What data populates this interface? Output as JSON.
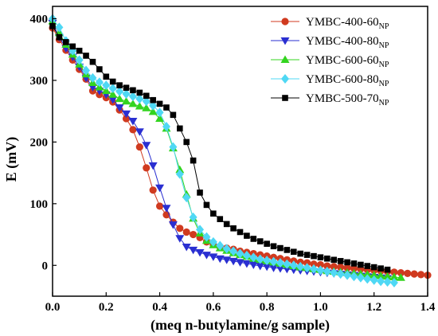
{
  "chart_data": {
    "type": "line",
    "title": "",
    "xlabel": "(meq n-butylamine/g sample)",
    "ylabel": "E (mV)",
    "xlim": [
      0.0,
      1.4
    ],
    "ylim": [
      -50,
      420
    ],
    "xticks": [
      "0.0",
      "0.2",
      "0.4",
      "0.6",
      "0.8",
      "1.0",
      "1.2",
      "1.4"
    ],
    "yticks": [
      "0",
      "100",
      "200",
      "300",
      "400"
    ],
    "grid": false,
    "legend_position": "top-right",
    "series": [
      {
        "name": "YMBC-400-60",
        "name_subscript": "NP",
        "color": "#d03a1f",
        "marker": "circle",
        "x": [
          0.0,
          0.025,
          0.05,
          0.075,
          0.1,
          0.125,
          0.15,
          0.175,
          0.2,
          0.225,
          0.25,
          0.275,
          0.3,
          0.325,
          0.35,
          0.375,
          0.4,
          0.425,
          0.45,
          0.475,
          0.5,
          0.525,
          0.55,
          0.575,
          0.6,
          0.625,
          0.65,
          0.675,
          0.7,
          0.725,
          0.75,
          0.775,
          0.8,
          0.825,
          0.85,
          0.875,
          0.9,
          0.925,
          0.95,
          0.975,
          1.0,
          1.025,
          1.05,
          1.075,
          1.1,
          1.125,
          1.15,
          1.175,
          1.2,
          1.225,
          1.25,
          1.275,
          1.3,
          1.325,
          1.35,
          1.375,
          1.4
        ],
        "y": [
          385,
          366,
          349,
          333,
          318,
          302,
          283,
          277,
          272,
          265,
          252,
          238,
          220,
          192,
          158,
          122,
          96,
          82,
          70,
          60,
          54,
          50,
          45,
          38,
          34,
          30,
          28,
          26,
          23,
          21,
          19,
          17,
          15,
          13,
          11,
          9,
          7,
          5,
          4,
          2,
          1,
          -1,
          -2,
          -3,
          -4,
          -5,
          -6,
          -7,
          -8,
          -9,
          -10,
          -11,
          -12,
          -13,
          -14,
          -15,
          -16
        ]
      },
      {
        "name": "YMBC-400-80",
        "name_subscript": "NP",
        "color": "#2a2fd1",
        "marker": "triangle-down",
        "x": [
          0.0,
          0.025,
          0.05,
          0.075,
          0.1,
          0.125,
          0.15,
          0.175,
          0.2,
          0.225,
          0.25,
          0.275,
          0.3,
          0.325,
          0.35,
          0.375,
          0.4,
          0.425,
          0.45,
          0.475,
          0.5,
          0.525,
          0.55,
          0.575,
          0.6,
          0.625,
          0.65,
          0.675,
          0.7,
          0.725,
          0.75,
          0.775,
          0.8,
          0.825,
          0.85,
          0.875,
          0.9,
          0.925,
          0.95,
          0.975,
          1.0,
          1.025,
          1.05,
          1.075,
          1.1,
          1.125,
          1.15,
          1.175,
          1.2,
          1.225,
          1.25
        ],
        "y": [
          393,
          370,
          352,
          338,
          322,
          304,
          289,
          283,
          277,
          269,
          256,
          246,
          234,
          217,
          195,
          162,
          126,
          93,
          66,
          44,
          30,
          25,
          21,
          17,
          14,
          11,
          9,
          7,
          5,
          3,
          1,
          -1,
          -2,
          -4,
          -5,
          -6,
          -7,
          -8,
          -9,
          -10,
          -11,
          -12,
          -13,
          -14,
          -15,
          -16,
          -17,
          -18,
          -19,
          -20,
          -21
        ]
      },
      {
        "name": "YMBC-600-60",
        "name_subscript": "NP",
        "color": "#33d41f",
        "marker": "triangle-up",
        "x": [
          0.0,
          0.025,
          0.05,
          0.075,
          0.1,
          0.125,
          0.15,
          0.175,
          0.2,
          0.225,
          0.25,
          0.275,
          0.3,
          0.325,
          0.35,
          0.375,
          0.4,
          0.425,
          0.45,
          0.475,
          0.5,
          0.525,
          0.55,
          0.575,
          0.6,
          0.625,
          0.65,
          0.675,
          0.7,
          0.725,
          0.75,
          0.775,
          0.8,
          0.825,
          0.85,
          0.875,
          0.9,
          0.925,
          0.95,
          0.975,
          1.0,
          1.025,
          1.05,
          1.075,
          1.1,
          1.125,
          1.15,
          1.175,
          1.2,
          1.225,
          1.25,
          1.275,
          1.3
        ],
        "y": [
          396,
          377,
          358,
          342,
          326,
          310,
          296,
          289,
          283,
          277,
          270,
          266,
          262,
          258,
          255,
          249,
          238,
          222,
          190,
          155,
          115,
          76,
          52,
          40,
          33,
          28,
          24,
          20,
          17,
          14,
          11,
          9,
          7,
          5,
          3,
          1,
          -1,
          -3,
          -4,
          -6,
          -7,
          -9,
          -10,
          -11,
          -12,
          -13,
          -14,
          -15,
          -16,
          -17,
          -18,
          -19,
          -20
        ]
      },
      {
        "name": "YMBC-600-80",
        "name_subscript": "NP",
        "color": "#4fd8f4",
        "marker": "diamond",
        "x": [
          0.0,
          0.025,
          0.05,
          0.075,
          0.1,
          0.125,
          0.15,
          0.175,
          0.2,
          0.225,
          0.25,
          0.275,
          0.3,
          0.325,
          0.35,
          0.375,
          0.4,
          0.425,
          0.45,
          0.475,
          0.5,
          0.525,
          0.55,
          0.575,
          0.6,
          0.625,
          0.65,
          0.675,
          0.7,
          0.725,
          0.75,
          0.775,
          0.8,
          0.825,
          0.85,
          0.875,
          0.9,
          0.925,
          0.95,
          0.975,
          1.0,
          1.025,
          1.05,
          1.075,
          1.1,
          1.125,
          1.15,
          1.175,
          1.2,
          1.225,
          1.25,
          1.275
        ],
        "y": [
          400,
          386,
          364,
          348,
          333,
          316,
          304,
          297,
          292,
          287,
          282,
          278,
          274,
          270,
          266,
          259,
          248,
          225,
          192,
          148,
          110,
          78,
          58,
          46,
          38,
          32,
          27,
          23,
          19,
          16,
          13,
          10,
          8,
          6,
          4,
          2,
          0,
          -2,
          -4,
          -6,
          -8,
          -10,
          -12,
          -14,
          -16,
          -18,
          -20,
          -22,
          -24,
          -26,
          -27,
          -28
        ]
      },
      {
        "name": "YMBC-500-70",
        "name_subscript": "NP",
        "color": "#000000",
        "marker": "square",
        "x": [
          0.0,
          0.025,
          0.05,
          0.075,
          0.1,
          0.125,
          0.15,
          0.175,
          0.2,
          0.225,
          0.25,
          0.275,
          0.3,
          0.325,
          0.35,
          0.375,
          0.4,
          0.425,
          0.45,
          0.475,
          0.5,
          0.525,
          0.55,
          0.575,
          0.6,
          0.625,
          0.65,
          0.675,
          0.7,
          0.725,
          0.75,
          0.775,
          0.8,
          0.825,
          0.85,
          0.875,
          0.9,
          0.925,
          0.95,
          0.975,
          1.0,
          1.025,
          1.05,
          1.075,
          1.1,
          1.125,
          1.15,
          1.175,
          1.2,
          1.225,
          1.25
        ],
        "y": [
          388,
          370,
          362,
          355,
          348,
          340,
          330,
          318,
          306,
          298,
          292,
          288,
          284,
          280,
          275,
          268,
          262,
          256,
          244,
          222,
          200,
          170,
          118,
          98,
          84,
          75,
          67,
          60,
          54,
          48,
          43,
          39,
          35,
          31,
          28,
          25,
          22,
          19,
          17,
          15,
          13,
          11,
          9,
          7,
          5,
          3,
          1,
          -1,
          -3,
          -5,
          -7
        ]
      }
    ]
  }
}
